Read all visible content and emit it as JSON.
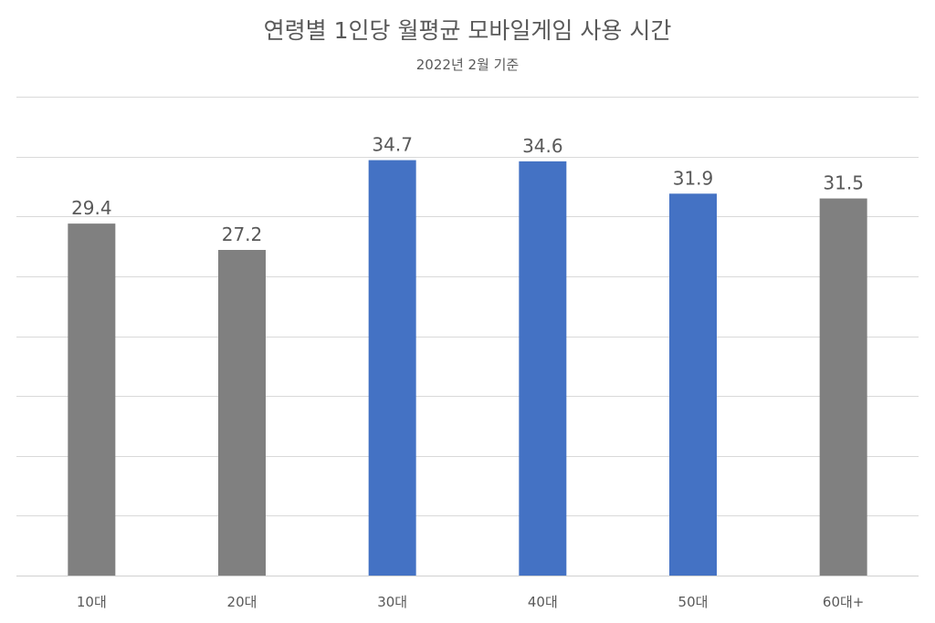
{
  "chart_data": {
    "type": "bar",
    "title": "연령별 1인당 월평균 모바일게임 사용 시간",
    "subtitle": "2022년 2월 기준",
    "xlabel": "",
    "ylabel": "",
    "categories": [
      "10대",
      "20대",
      "30대",
      "40대",
      "50대",
      "60대+"
    ],
    "values": [
      29.4,
      27.2,
      34.7,
      34.6,
      31.9,
      31.5
    ],
    "value_labels": [
      "29.4",
      "27.2",
      "34.7",
      "34.6",
      "31.9",
      "31.5"
    ],
    "bar_colors": [
      "#808080",
      "#808080",
      "#4472c4",
      "#4472c4",
      "#4472c4",
      "#808080"
    ],
    "ylim": [
      0,
      40
    ],
    "gridline_step": 5,
    "grid": true,
    "legend": "none"
  }
}
